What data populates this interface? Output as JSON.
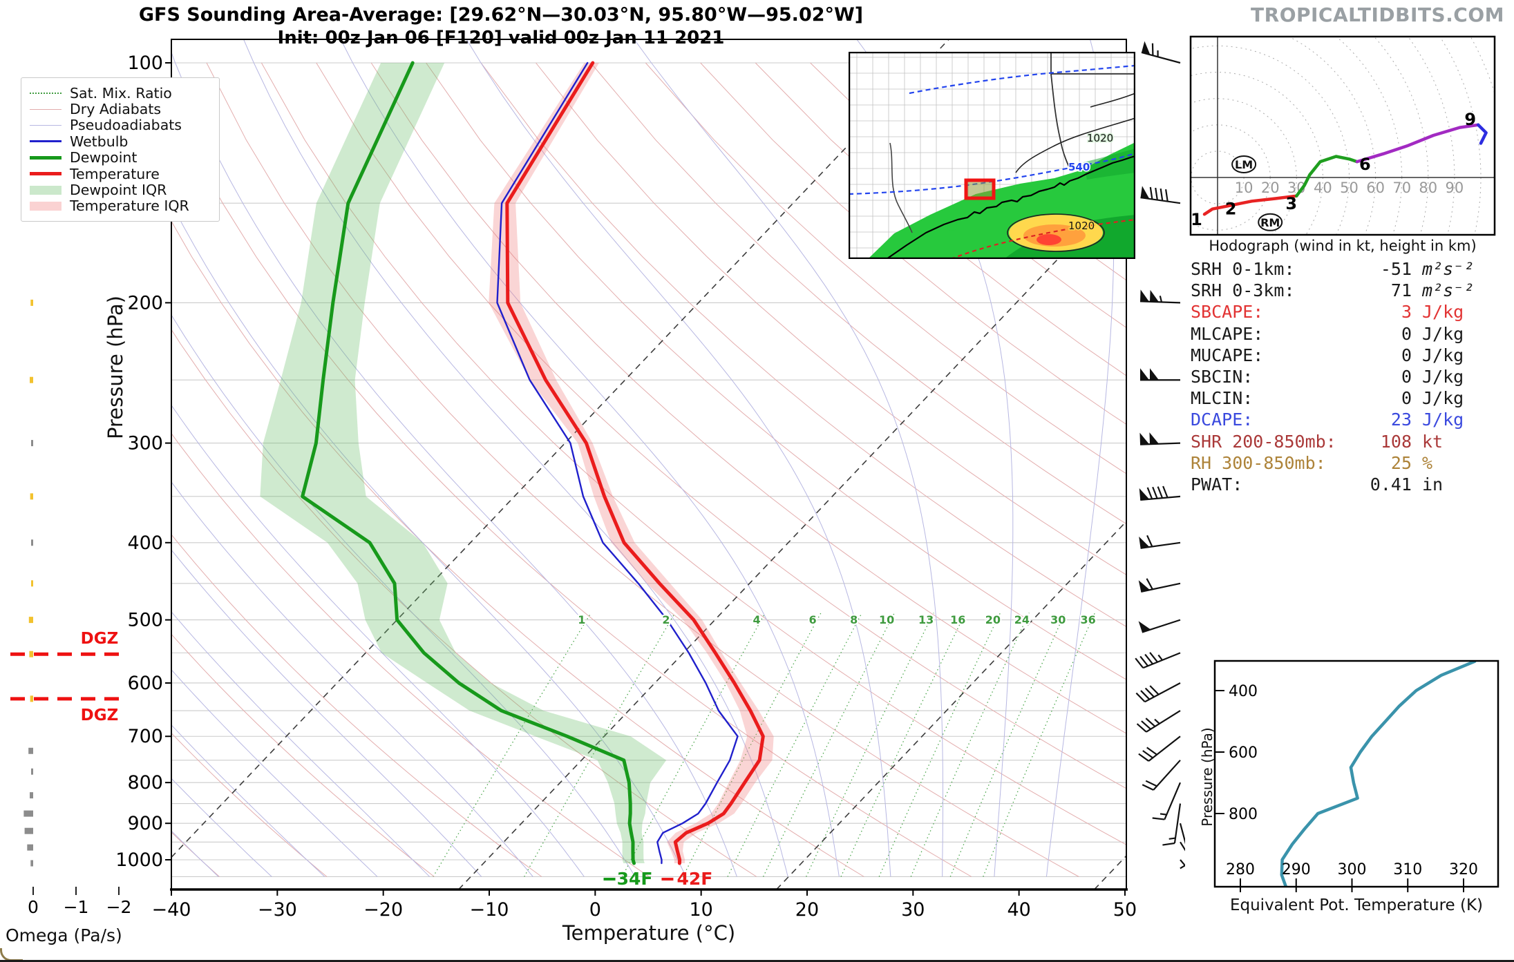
{
  "page": {
    "title_line1": "GFS Sounding Area-Average: [29.62°N—30.03°N, 95.80°W—95.02°W]",
    "title_line2": "Init: 00z Jan 06 [F120] valid 00z Jan 11 2021",
    "watermark": "TROPICALTIDBITS.COM"
  },
  "legend": {
    "items": [
      {
        "label": "Sat. Mix. Ratio",
        "style": "dotted",
        "color": "#3f9b3f"
      },
      {
        "label": "Dry Adiabats",
        "style": "thin",
        "color": "#e2acac"
      },
      {
        "label": "Pseudoadiabats",
        "style": "thin",
        "color": "#b7b7e2"
      },
      {
        "label": "Wetbulb",
        "style": "medium",
        "color": "#2020cc"
      },
      {
        "label": "Dewpoint",
        "style": "thick",
        "color": "#17991b"
      },
      {
        "label": "Temperature",
        "style": "thick",
        "color": "#ea1c1c"
      },
      {
        "label": "Dewpoint IQR",
        "style": "patch",
        "color": "rgba(105,190,105,0.35)"
      },
      {
        "label": "Temperature IQR",
        "style": "patch",
        "color": "rgba(240,125,125,0.35)"
      }
    ]
  },
  "skewt": {
    "xlabel": "Temperature (°C)",
    "ylabel": "Pressure (hPa)",
    "x_ticks": [
      -40,
      -30,
      -20,
      -10,
      0,
      10,
      20,
      30,
      40,
      50
    ],
    "x_tick_labels": [
      "−40",
      "−30",
      "−20",
      "−10",
      "0",
      "10",
      "20",
      "30",
      "40",
      "50"
    ],
    "p_ticks": [
      100,
      200,
      300,
      400,
      500,
      600,
      700,
      800,
      900,
      1000
    ],
    "dgz_label": "DGZ"
  },
  "omega": {
    "label": "Omega (Pa/s)",
    "ticks": [
      0,
      -1,
      -2
    ],
    "tick_labels": [
      "0",
      "−1",
      "−2"
    ]
  },
  "hodograph_panel": {
    "caption": "Hodograph (wind in kt, height in km)",
    "ring_labels": [
      "10",
      "20",
      "30",
      "40",
      "50",
      "60",
      "70",
      "80",
      "90"
    ]
  },
  "stats": {
    "rows": [
      {
        "label": "SRH 0-1km:",
        "value": "-51",
        "unit": "m²s⁻²",
        "color": "#1a1a1a",
        "math": true
      },
      {
        "label": "SRH 0-3km:",
        "value": "71",
        "unit": "m²s⁻²",
        "color": "#1a1a1a",
        "math": true
      },
      {
        "label": "SBCAPE:",
        "value": "3",
        "unit": "J/kg",
        "color": "#e23333"
      },
      {
        "label": "MLCAPE:",
        "value": "0",
        "unit": "J/kg",
        "color": "#1a1a1a"
      },
      {
        "label": "MUCAPE:",
        "value": "0",
        "unit": "J/kg",
        "color": "#1a1a1a"
      },
      {
        "label": "SBCIN:",
        "value": "0",
        "unit": "J/kg",
        "color": "#1a1a1a"
      },
      {
        "label": "MLCIN:",
        "value": "0",
        "unit": "J/kg",
        "color": "#1a1a1a"
      },
      {
        "label": "DCAPE:",
        "value": "23",
        "unit": "J/kg",
        "color": "#3a49de"
      },
      {
        "label": "SHR 200-850mb:",
        "value": "108",
        "unit": "kt",
        "color": "#aa3939"
      },
      {
        "label": "RH 300-850mb:",
        "value": "25",
        "unit": "%",
        "color": "#ad8339"
      },
      {
        "label": "PWAT:",
        "value": "0.41",
        "unit": "in",
        "color": "#1a1a1a"
      }
    ]
  },
  "thetae_panel": {
    "xlabel": "Equivalent Pot. Temperature (K)",
    "ylabel": "Pressure (hPa)",
    "x_ticks": [
      280,
      290,
      300,
      310,
      320
    ],
    "y_ticks": [
      400,
      600,
      800
    ]
  },
  "map": {
    "labels": {
      "thickness": "540",
      "isobar_top": "1020",
      "isobar_blob": "1020"
    }
  },
  "chart_data": [
    {
      "id": "sounding",
      "type": "line",
      "title": "Skew-T log-P area-average sounding",
      "x_axis": {
        "label": "Temperature (°C)",
        "range": [
          -40,
          50
        ]
      },
      "y_axis": {
        "label": "Pressure (hPa)",
        "range": [
          100,
          1050
        ],
        "scale": "log"
      },
      "pressures": [
        1010,
        1000,
        975,
        950,
        925,
        900,
        875,
        850,
        800,
        750,
        700,
        650,
        600,
        550,
        500,
        450,
        400,
        350,
        300,
        250,
        200,
        150,
        100
      ],
      "series": [
        {
          "name": "Temperature",
          "color": "#ea1c1c",
          "values": [
            5.5,
            5.2,
            4.2,
            3.2,
            3.4,
            4.6,
            5.2,
            5.0,
            4.4,
            3.8,
            2.0,
            -1.5,
            -5.5,
            -10.0,
            -15.0,
            -21.5,
            -28.5,
            -34.5,
            -41.0,
            -50.5,
            -61.0,
            -70.0,
            -74.5
          ]
        },
        {
          "name": "Dewpoint",
          "color": "#17991b",
          "values": [
            1.2,
            0.8,
            0.0,
            -0.8,
            -1.8,
            -2.8,
            -3.6,
            -4.5,
            -6.5,
            -9.0,
            -16.5,
            -25.0,
            -31.5,
            -37.5,
            -43.0,
            -46.5,
            -52.5,
            -63.0,
            -66.5,
            -71.5,
            -77.5,
            -85.0,
            -91.5
          ]
        },
        {
          "name": "Wetbulb",
          "color": "#2020cc",
          "values": [
            3.8,
            3.5,
            2.5,
            1.5,
            1.2,
            2.2,
            2.8,
            2.6,
            1.8,
            1.0,
            -0.4,
            -4.5,
            -8.2,
            -12.5,
            -17.5,
            -23.5,
            -30.5,
            -36.5,
            -42.5,
            -52.0,
            -62.0,
            -70.5,
            -75.0
          ]
        }
      ],
      "temp_iqr_below": [
        0.5,
        0.5,
        0.6,
        0.8,
        1.0,
        1.2,
        1.2,
        1.2,
        1.5,
        1.8,
        1.5,
        1.0,
        0.8,
        0.8,
        1.0,
        1.2,
        1.2,
        1.0,
        0.8,
        1.5,
        1.8,
        1.2,
        0.8
      ],
      "temp_iqr_above": [
        0.5,
        0.5,
        0.5,
        0.8,
        1.0,
        1.0,
        1.0,
        1.0,
        1.0,
        1.2,
        1.0,
        0.8,
        0.6,
        0.6,
        0.8,
        1.0,
        1.0,
        0.8,
        0.6,
        1.0,
        1.2,
        0.8,
        0.6
      ],
      "dew_iqr_below": [
        1.0,
        1.0,
        1.0,
        1.0,
        1.0,
        1.2,
        1.4,
        1.5,
        2.0,
        2.5,
        3.0,
        3.0,
        3.0,
        4.0,
        3.0,
        3.5,
        4.0,
        4.0,
        5.0,
        4.0,
        3.0,
        3.0,
        3.0
      ],
      "dew_iqr_above": [
        1.0,
        1.0,
        1.0,
        1.0,
        1.0,
        1.2,
        1.4,
        1.5,
        2.0,
        4.0,
        6.0,
        4.0,
        3.0,
        3.0,
        4.0,
        5.0,
        5.0,
        6.0,
        4.0,
        3.0,
        3.0,
        3.0,
        3.0
      ],
      "mix_ratio_lines": [
        1,
        2,
        4,
        6,
        8,
        10,
        13,
        16,
        20,
        24,
        30,
        36
      ],
      "dashed_isotherms": [
        -43,
        -13,
        17,
        47
      ],
      "dgz_pressures": [
        552,
        628
      ],
      "surface": {
        "temp_label": "42F",
        "dew_label": "34F"
      }
    },
    {
      "id": "omega",
      "type": "bar",
      "xlabel": "Omega (Pa/s)",
      "x_range": [
        0.5,
        -2.3
      ],
      "bars": [
        [
          150,
          0.04,
          "y"
        ],
        [
          200,
          0.06,
          "y"
        ],
        [
          250,
          0.08,
          "y"
        ],
        [
          300,
          0.04,
          "g"
        ],
        [
          350,
          0.07,
          "y"
        ],
        [
          400,
          0.04,
          "g"
        ],
        [
          450,
          0.04,
          "y"
        ],
        [
          500,
          0.1,
          "y"
        ],
        [
          552,
          0.09,
          "y"
        ],
        [
          628,
          0.07,
          "y"
        ],
        [
          730,
          0.11,
          "g"
        ],
        [
          775,
          0.04,
          "g"
        ],
        [
          830,
          0.08,
          "g"
        ],
        [
          875,
          0.22,
          "g"
        ],
        [
          920,
          0.2,
          "g"
        ],
        [
          965,
          0.14,
          "g"
        ],
        [
          1010,
          0.06,
          "g"
        ]
      ],
      "colors": {
        "y": "#f2c22e",
        "g": "#8c8c8c"
      }
    },
    {
      "id": "winds",
      "type": "barbs",
      "units": "kt",
      "levels": [
        [
          100,
          285,
          65
        ],
        [
          150,
          278,
          90
        ],
        [
          200,
          272,
          105
        ],
        [
          250,
          270,
          100
        ],
        [
          300,
          268,
          100
        ],
        [
          350,
          265,
          90
        ],
        [
          400,
          262,
          60
        ],
        [
          450,
          258,
          60
        ],
        [
          500,
          252,
          50
        ],
        [
          550,
          248,
          45
        ],
        [
          600,
          242,
          40
        ],
        [
          650,
          238,
          35
        ],
        [
          700,
          232,
          30
        ],
        [
          750,
          222,
          20
        ],
        [
          800,
          203,
          15
        ],
        [
          850,
          188,
          15
        ],
        [
          900,
          165,
          10
        ],
        [
          950,
          148,
          5
        ],
        [
          1000,
          140,
          5
        ]
      ]
    },
    {
      "id": "hodograph",
      "type": "line",
      "units": "kt",
      "rings": [
        10,
        20,
        30,
        40,
        50,
        60,
        70,
        80,
        90,
        100,
        110,
        120
      ],
      "segments": [
        {
          "layer": "0-3km",
          "color": "#e82323",
          "points": [
            [
              -5,
              -14
            ],
            [
              -2,
              -12
            ],
            [
              3,
              -11
            ],
            [
              13,
              -9
            ],
            [
              22,
              -8
            ],
            [
              30,
              -7
            ]
          ]
        },
        {
          "layer": "3-6km",
          "color": "#1f9e1f",
          "points": [
            [
              30,
              -7
            ],
            [
              33,
              -3
            ],
            [
              35,
              1
            ],
            [
              39,
              6
            ],
            [
              45,
              8
            ],
            [
              50,
              7
            ],
            [
              53,
              6
            ]
          ]
        },
        {
          "layer": "6-9km",
          "color": "#a22ac2",
          "points": [
            [
              53,
              6
            ],
            [
              63,
              9
            ],
            [
              72,
              12
            ],
            [
              82,
              16
            ],
            [
              92,
              19
            ],
            [
              99,
              20
            ]
          ]
        },
        {
          "layer": "9-12km",
          "color": "#2d2de0",
          "points": [
            [
              99,
              20
            ],
            [
              102,
              17
            ],
            [
              100,
              13
            ]
          ]
        }
      ],
      "height_labels": [
        {
          "text": "1",
          "u": -8,
          "v": -16
        },
        {
          "text": "2",
          "u": 5,
          "v": -12
        },
        {
          "text": "3",
          "u": 28,
          "v": -10
        },
        {
          "text": "6",
          "u": 56,
          "v": 5
        },
        {
          "text": "9",
          "u": 96,
          "v": 22
        }
      ],
      "movers": [
        {
          "text": "LM",
          "u": 10,
          "v": 5
        },
        {
          "text": "RM",
          "u": 20,
          "v": -17
        }
      ]
    },
    {
      "id": "theta_e",
      "type": "line",
      "xlabel": "Equivalent Pot. Temperature (K)",
      "ylabel": "Pressure (hPa)",
      "x_range": [
        278,
        324
      ],
      "color": "#3a93ab",
      "pressures": [
        305,
        350,
        400,
        450,
        500,
        550,
        600,
        650,
        700,
        750,
        800,
        850,
        900,
        950,
        1000,
        1040
      ],
      "values": [
        322,
        316,
        311.5,
        308.5,
        306,
        303.5,
        301.5,
        299.8,
        300.3,
        301,
        293.9,
        291.5,
        289.3,
        287.5,
        287.4,
        288.2
      ]
    }
  ]
}
